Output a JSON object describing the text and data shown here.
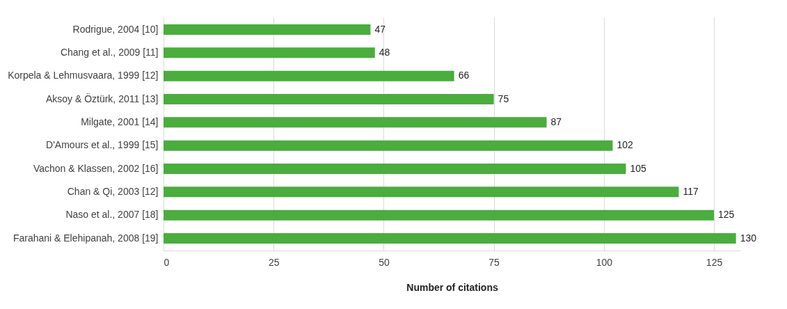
{
  "chart_data": {
    "type": "bar",
    "orientation": "horizontal",
    "categories": [
      "Rodrigue, 2004 [10]",
      "Chang et al., 2009 [11]",
      "Korpela & Lehmusvaara, 1999 [12]",
      "Aksoy & Öztürk, 2011 [13]",
      "Milgate, 2001 [14]",
      "D'Amours et al., 1999 [15]",
      "Vachon & Klassen, 2002 [16]",
      "Chan & Qi, 2003 [12]",
      "Naso et al., 2007 [18]",
      "Farahani & Elehipanah, 2008 [19]"
    ],
    "values": [
      47,
      48,
      66,
      75,
      87,
      102,
      105,
      117,
      125,
      130
    ],
    "color": "#4aad3d",
    "xlabel": "Number of citations",
    "xlim": [
      0,
      131
    ],
    "xticks": [
      0,
      25,
      50,
      75,
      100,
      125
    ],
    "grid": "x",
    "data_labels": true
  }
}
